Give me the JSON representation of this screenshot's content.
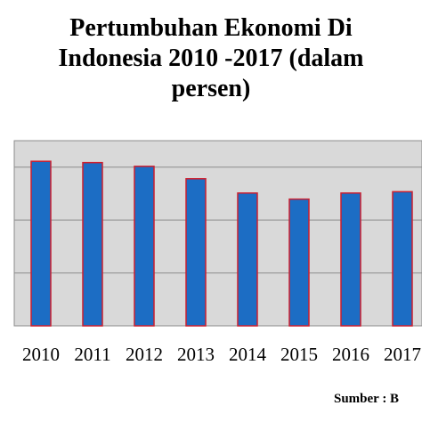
{
  "chart_data": {
    "type": "bar",
    "title_lines": [
      "Pertumbuhan Ekonomi Di",
      "Indonesia 2010 -2017 (dalam",
      "persen)"
    ],
    "categories": [
      "2010",
      "2011",
      "2012",
      "2013",
      "2014",
      "2015",
      "2016",
      "2017"
    ],
    "values": [
      6.22,
      6.17,
      6.03,
      5.56,
      5.02,
      4.79,
      5.02,
      5.07
    ],
    "xlabel": "",
    "ylabel": "",
    "ylim": [
      0,
      7
    ],
    "grid": true,
    "legend": "none",
    "colors": {
      "bar_fill": "#1c6dc4",
      "bar_edge": "#cc1f2f",
      "plot_bg": "#d9d9d9",
      "gridline": "#8c8c8c"
    }
  },
  "source": "Sumber : B"
}
